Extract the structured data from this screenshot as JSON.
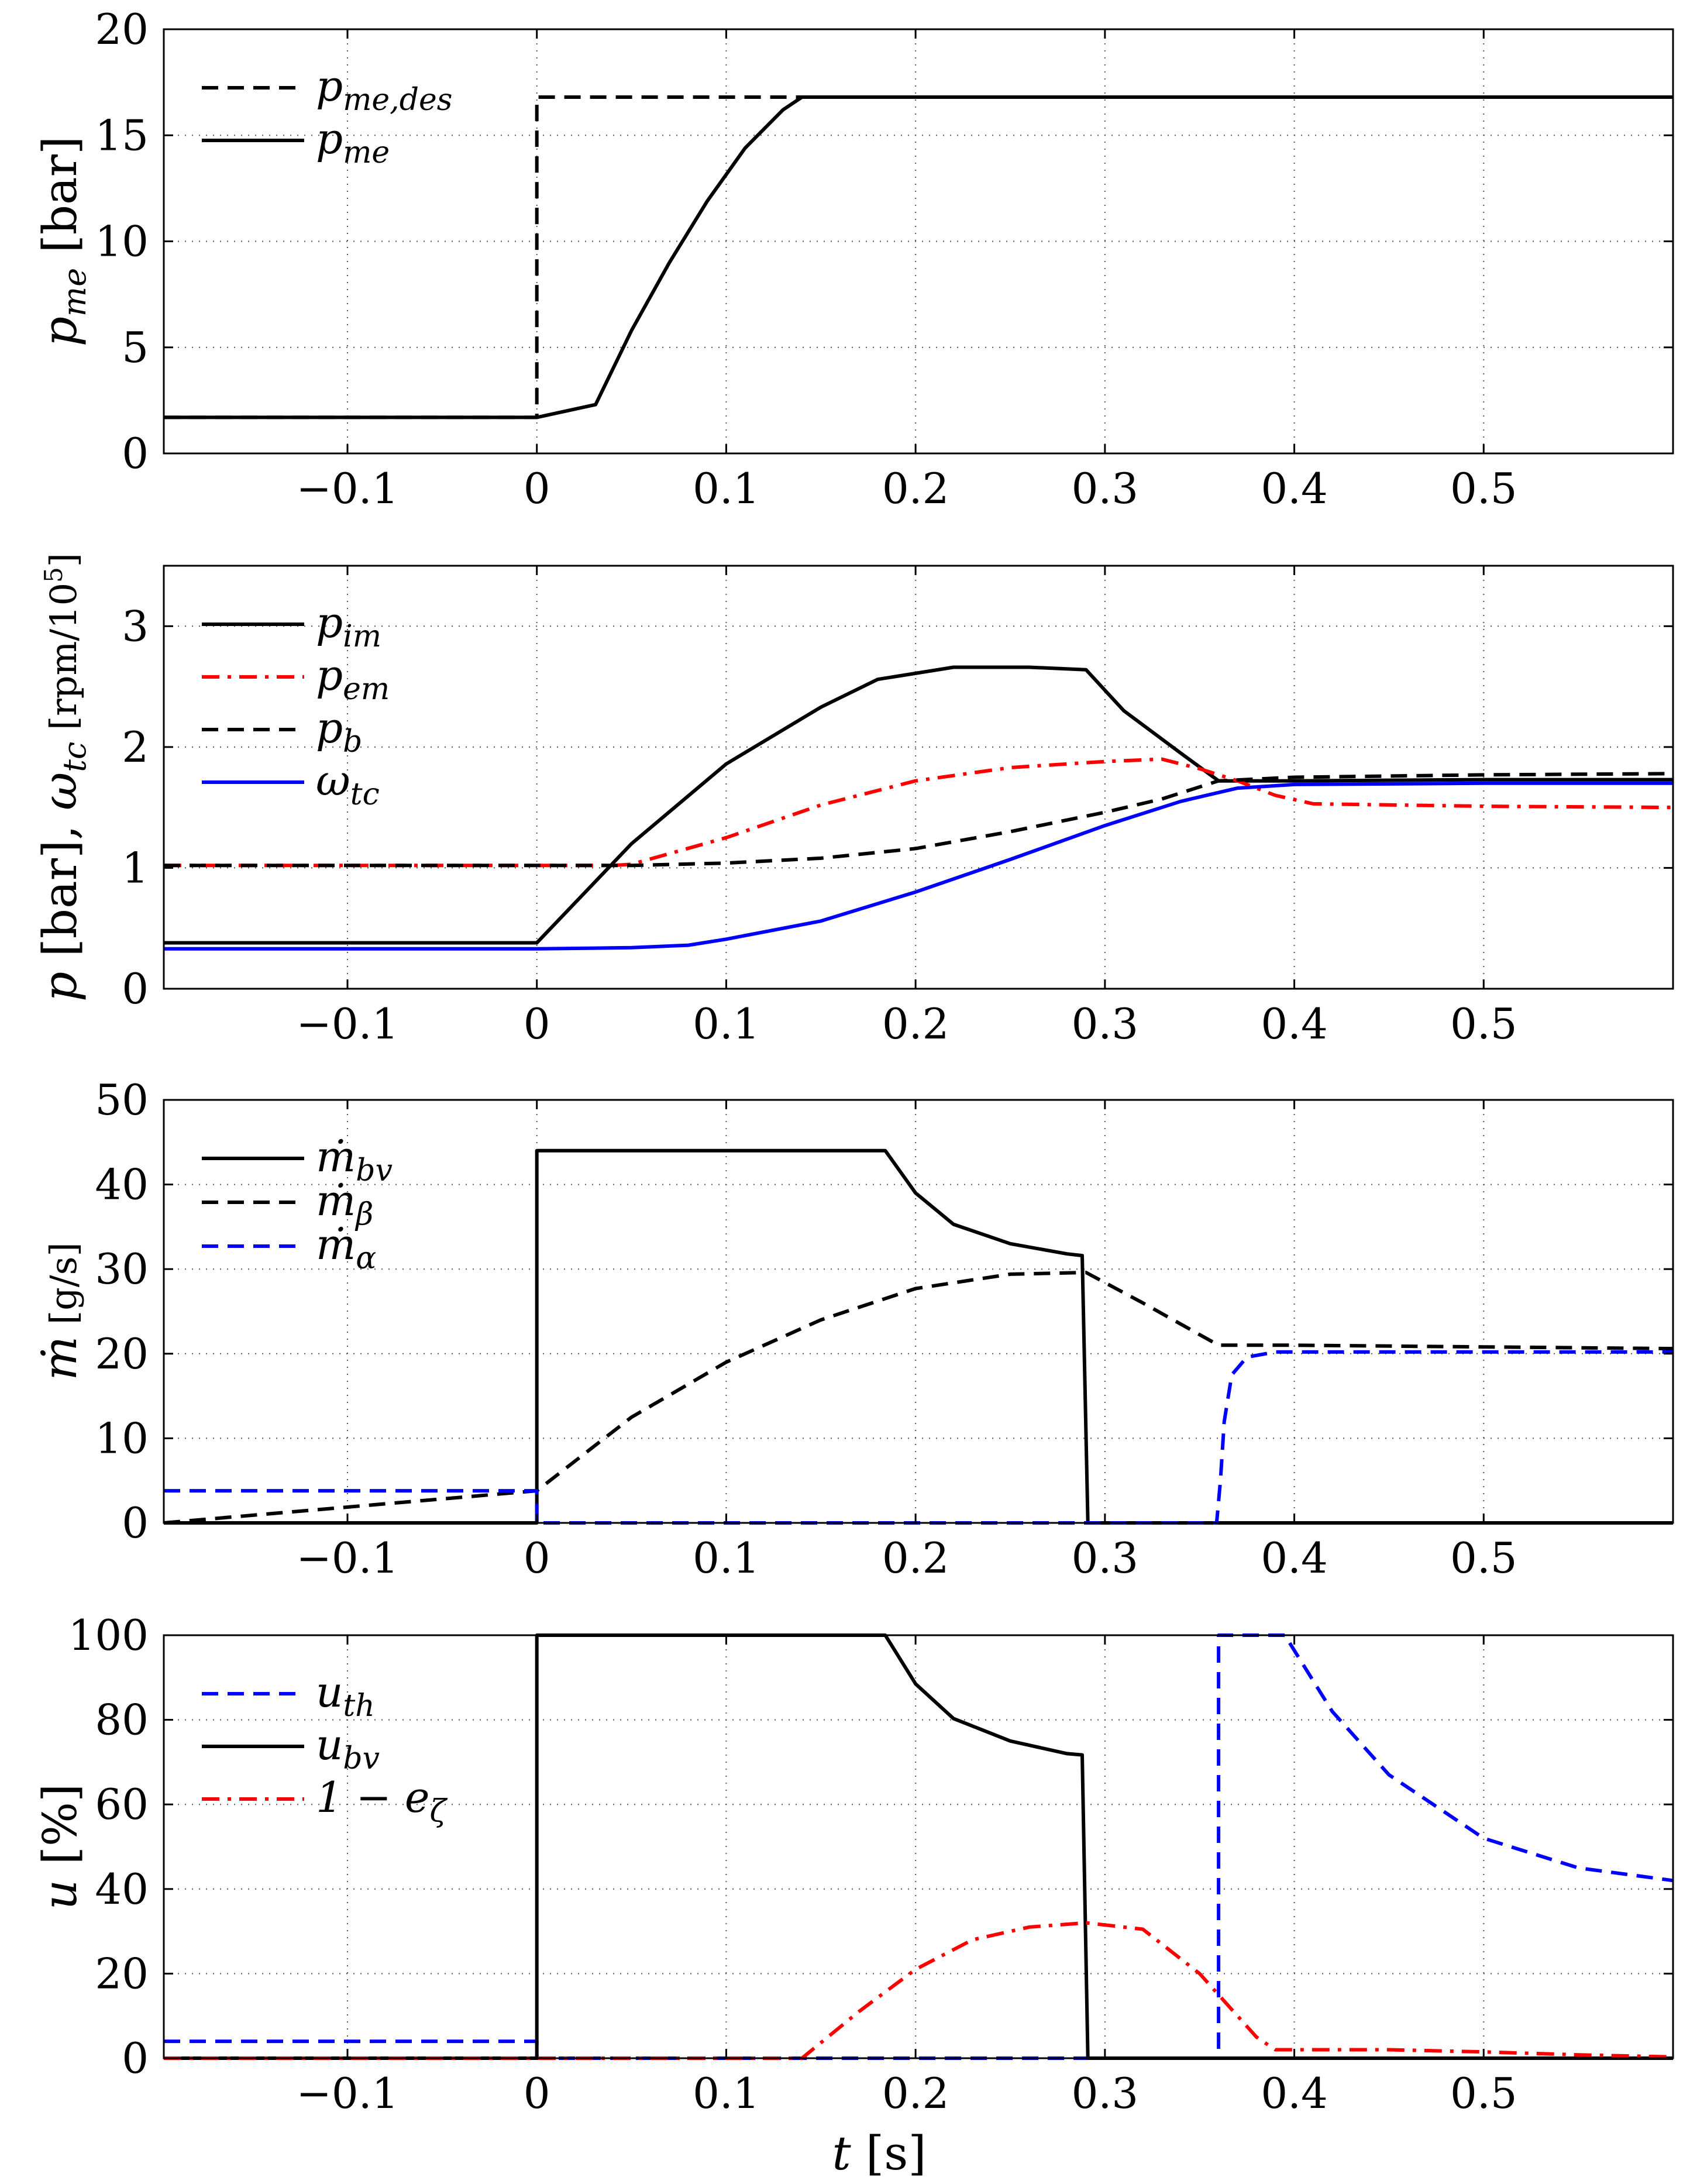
{
  "chart_data": [
    {
      "type": "line",
      "ylabel": "p_me [bar]",
      "xlim": [
        -0.197,
        0.6
      ],
      "ylim": [
        0,
        20
      ],
      "xticks": [
        -0.1,
        0,
        0.1,
        0.2,
        0.3,
        0.4,
        0.5
      ],
      "xtick_labels": [
        "−0.1",
        "0",
        "0.1",
        "0.2",
        "0.3",
        "0.4",
        "0.5"
      ],
      "yticks": [
        0,
        5,
        10,
        15,
        20
      ],
      "ytick_labels": [
        "0",
        "5",
        "10",
        "15",
        "20"
      ],
      "grid": true,
      "legend": "top-left",
      "series": [
        {
          "name": "p_me,des",
          "color": "#000000",
          "dash": "dashed",
          "x": [
            -0.197,
            0,
            0,
            0.6
          ],
          "y": [
            1.7,
            1.7,
            16.8,
            16.8
          ]
        },
        {
          "name": "p_me",
          "color": "#000000",
          "dash": "solid",
          "x": [
            -0.197,
            0,
            0.031,
            0.05,
            0.07,
            0.09,
            0.11,
            0.13,
            0.14,
            0.6
          ],
          "y": [
            1.7,
            1.7,
            2.3,
            5.8,
            9.0,
            11.9,
            14.4,
            16.2,
            16.8,
            16.8
          ]
        }
      ]
    },
    {
      "type": "line",
      "ylabel": "p [bar], ω_tc [rpm/10^5]",
      "xlim": [
        -0.197,
        0.6
      ],
      "ylim": [
        0,
        3.5
      ],
      "xticks": [
        -0.1,
        0,
        0.1,
        0.2,
        0.3,
        0.4,
        0.5
      ],
      "xtick_labels": [
        "−0.1",
        "0",
        "0.1",
        "0.2",
        "0.3",
        "0.4",
        "0.5"
      ],
      "yticks": [
        0,
        1,
        2,
        3
      ],
      "ytick_labels": [
        "0",
        "1",
        "2",
        "3"
      ],
      "grid": true,
      "legend": "top-left",
      "series": [
        {
          "name": "p_im",
          "color": "#000000",
          "dash": "solid",
          "x": [
            -0.197,
            0,
            0.05,
            0.1,
            0.15,
            0.18,
            0.22,
            0.26,
            0.29,
            0.31,
            0.34,
            0.36,
            0.4,
            0.5,
            0.6
          ],
          "y": [
            0.38,
            0.38,
            1.2,
            1.86,
            2.33,
            2.56,
            2.66,
            2.66,
            2.64,
            2.3,
            1.95,
            1.72,
            1.72,
            1.73,
            1.73
          ]
        },
        {
          "name": "p_em",
          "color": "#ff0000",
          "dash": "dashdot",
          "x": [
            -0.197,
            0,
            0.04,
            0.05,
            0.1,
            0.15,
            0.2,
            0.25,
            0.3,
            0.33,
            0.35,
            0.37,
            0.39,
            0.41,
            0.5,
            0.6
          ],
          "y": [
            1.02,
            1.02,
            1.02,
            1.03,
            1.25,
            1.52,
            1.72,
            1.83,
            1.88,
            1.9,
            1.82,
            1.72,
            1.6,
            1.53,
            1.51,
            1.5
          ]
        },
        {
          "name": "p_b",
          "color": "#000000",
          "dash": "dashed",
          "x": [
            -0.197,
            0,
            0.05,
            0.1,
            0.15,
            0.2,
            0.25,
            0.3,
            0.33,
            0.36,
            0.4,
            0.5,
            0.6
          ],
          "y": [
            1.02,
            1.02,
            1.02,
            1.04,
            1.08,
            1.16,
            1.3,
            1.46,
            1.57,
            1.72,
            1.75,
            1.77,
            1.78
          ]
        },
        {
          "name": "ω_tc",
          "color": "#0000ff",
          "dash": "solid",
          "x": [
            -0.197,
            0,
            0.05,
            0.08,
            0.1,
            0.15,
            0.2,
            0.25,
            0.3,
            0.34,
            0.37,
            0.4,
            0.5,
            0.6
          ],
          "y": [
            0.33,
            0.33,
            0.34,
            0.36,
            0.41,
            0.56,
            0.8,
            1.07,
            1.35,
            1.55,
            1.66,
            1.69,
            1.7,
            1.7
          ]
        }
      ]
    },
    {
      "type": "line",
      "ylabel": "ṁ [g/s]",
      "xlim": [
        -0.197,
        0.6
      ],
      "ylim": [
        0,
        50
      ],
      "xticks": [
        -0.1,
        0,
        0.1,
        0.2,
        0.3,
        0.4,
        0.5
      ],
      "xtick_labels": [
        "−0.1",
        "0",
        "0.1",
        "0.2",
        "0.3",
        "0.4",
        "0.5"
      ],
      "yticks": [
        0,
        10,
        20,
        30,
        40,
        50
      ],
      "ytick_labels": [
        "0",
        "10",
        "20",
        "30",
        "40",
        "50"
      ],
      "grid": true,
      "legend": "top-left",
      "series": [
        {
          "name": "ṁ_bv",
          "color": "#000000",
          "dash": "solid",
          "x": [
            -0.197,
            0,
            0,
            0.184,
            0.2,
            0.22,
            0.25,
            0.28,
            0.288,
            0.288,
            0.291,
            0.6
          ],
          "y": [
            0,
            0,
            44,
            44,
            39.0,
            35.3,
            33.0,
            31.8,
            31.6,
            31.6,
            0,
            0
          ]
        },
        {
          "name": "ṁ_β",
          "color": "#000000",
          "dash": "dashed",
          "x": [
            -0.197,
            0,
            0.05,
            0.1,
            0.15,
            0.2,
            0.25,
            0.29,
            0.32,
            0.36,
            0.4,
            0.5,
            0.6
          ],
          "y": [
            0,
            3.8,
            12.5,
            19.0,
            24.0,
            27.7,
            29.4,
            29.6,
            26.0,
            21.0,
            21.0,
            20.8,
            20.6
          ]
        },
        {
          "name": "ṁ_α",
          "color": "#0000ff",
          "dash": "dashed",
          "x": [
            -0.197,
            0,
            0,
            0.359,
            0.361,
            0.363,
            0.367,
            0.375,
            0.39,
            0.5,
            0.6
          ],
          "y": [
            3.8,
            3.8,
            0,
            0,
            5.0,
            12.0,
            17.5,
            19.6,
            20.2,
            20.2,
            20.2
          ]
        }
      ]
    },
    {
      "type": "line",
      "ylabel": "u [%]",
      "xlabel": "t [s]",
      "xlim": [
        -0.197,
        0.6
      ],
      "ylim": [
        0,
        100
      ],
      "xticks": [
        -0.1,
        0,
        0.1,
        0.2,
        0.3,
        0.4,
        0.5
      ],
      "xtick_labels": [
        "−0.1",
        "0",
        "0.1",
        "0.2",
        "0.3",
        "0.4",
        "0.5"
      ],
      "yticks": [
        0,
        20,
        40,
        60,
        80,
        100
      ],
      "ytick_labels": [
        "0",
        "20",
        "40",
        "60",
        "80",
        "100"
      ],
      "grid": true,
      "legend": "top-left",
      "series": [
        {
          "name": "u_th",
          "color": "#0000ff",
          "dash": "dashed",
          "x": [
            -0.197,
            0,
            0,
            0.36,
            0.36,
            0.395,
            0.42,
            0.45,
            0.5,
            0.55,
            0.6
          ],
          "y": [
            4,
            4,
            0,
            0,
            100,
            100,
            82,
            67,
            52,
            45,
            42
          ]
        },
        {
          "name": "u_bv",
          "color": "#000000",
          "dash": "solid",
          "x": [
            -0.197,
            0,
            0,
            0.184,
            0.2,
            0.22,
            0.25,
            0.28,
            0.288,
            0.288,
            0.291,
            0.6
          ],
          "y": [
            0,
            0,
            100,
            100,
            88.5,
            80.3,
            75.0,
            72.0,
            71.7,
            71.7,
            0,
            0
          ]
        },
        {
          "name": "1 − e_ζ",
          "color": "#ff0000",
          "dash": "dashdot",
          "x": [
            -0.197,
            0.14,
            0.17,
            0.2,
            0.23,
            0.26,
            0.29,
            0.32,
            0.35,
            0.38,
            0.39,
            0.45,
            0.5,
            0.55,
            0.6
          ],
          "y": [
            0,
            0,
            11,
            21,
            28,
            31,
            32,
            30.5,
            20,
            5,
            2,
            2,
            1.5,
            0.8,
            0.3
          ]
        }
      ]
    }
  ]
}
